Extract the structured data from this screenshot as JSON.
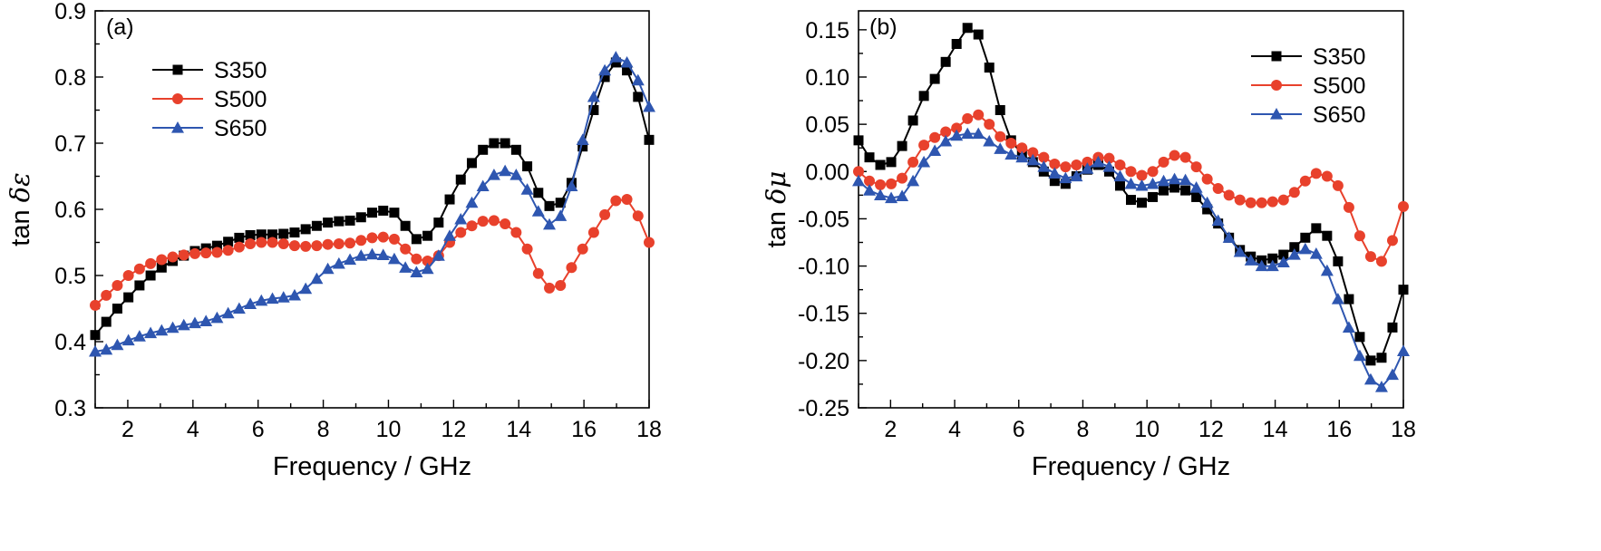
{
  "chart_data": [
    {
      "type": "line",
      "panel_label": "(a)",
      "xlabel": "Frequency / GHz",
      "ylabel_prefix": "tan ",
      "ylabel_symbol": "δε",
      "xlim": [
        1,
        18
      ],
      "ylim": [
        0.3,
        0.9
      ],
      "xticks": [
        2,
        4,
        6,
        8,
        10,
        12,
        14,
        16,
        18
      ],
      "xtick_labels": [
        "2",
        "4",
        "6",
        "8",
        "10",
        "12",
        "14",
        "16",
        "18"
      ],
      "yticks": [
        0.3,
        0.4,
        0.5,
        0.6,
        0.7,
        0.8,
        0.9
      ],
      "ytick_labels": [
        "0.3",
        "0.4",
        "0.5",
        "0.6",
        "0.7",
        "0.8",
        "0.9"
      ],
      "legend_position": "upper-left",
      "grid": false,
      "x": [
        1,
        1.34,
        1.68,
        2.02,
        2.36,
        2.7,
        3.04,
        3.38,
        3.72,
        4.06,
        4.4,
        4.74,
        5.08,
        5.42,
        5.76,
        6.1,
        6.44,
        6.78,
        7.12,
        7.46,
        7.8,
        8.14,
        8.48,
        8.82,
        9.16,
        9.5,
        9.84,
        10.18,
        10.52,
        10.86,
        11.2,
        11.54,
        11.88,
        12.22,
        12.56,
        12.9,
        13.24,
        13.58,
        13.92,
        14.26,
        14.6,
        14.94,
        15.28,
        15.62,
        15.96,
        16.3,
        16.64,
        16.98,
        17.32,
        17.66,
        18
      ],
      "series": [
        {
          "name": "S350",
          "color": "#000000",
          "marker": "square",
          "values": [
            0.41,
            0.43,
            0.45,
            0.467,
            0.485,
            0.5,
            0.512,
            0.522,
            0.53,
            0.537,
            0.541,
            0.545,
            0.551,
            0.557,
            0.561,
            0.562,
            0.562,
            0.563,
            0.565,
            0.57,
            0.575,
            0.58,
            0.582,
            0.583,
            0.588,
            0.595,
            0.598,
            0.595,
            0.575,
            0.555,
            0.56,
            0.58,
            0.615,
            0.645,
            0.67,
            0.69,
            0.7,
            0.7,
            0.69,
            0.665,
            0.625,
            0.605,
            0.61,
            0.64,
            0.695,
            0.75,
            0.8,
            0.822,
            0.81,
            0.77,
            0.705
          ]
        },
        {
          "name": "S500",
          "color": "#e8412c",
          "marker": "circle",
          "values": [
            0.455,
            0.47,
            0.485,
            0.5,
            0.51,
            0.518,
            0.524,
            0.528,
            0.531,
            0.533,
            0.534,
            0.535,
            0.538,
            0.543,
            0.548,
            0.55,
            0.55,
            0.548,
            0.545,
            0.544,
            0.545,
            0.547,
            0.548,
            0.549,
            0.553,
            0.557,
            0.558,
            0.555,
            0.54,
            0.525,
            0.522,
            0.53,
            0.55,
            0.565,
            0.575,
            0.582,
            0.583,
            0.578,
            0.565,
            0.54,
            0.503,
            0.481,
            0.485,
            0.512,
            0.54,
            0.565,
            0.592,
            0.613,
            0.615,
            0.59,
            0.55
          ]
        },
        {
          "name": "S650",
          "color": "#2e56b0",
          "marker": "triangle",
          "values": [
            0.385,
            0.388,
            0.395,
            0.402,
            0.408,
            0.413,
            0.417,
            0.421,
            0.425,
            0.428,
            0.431,
            0.436,
            0.443,
            0.45,
            0.457,
            0.462,
            0.465,
            0.467,
            0.47,
            0.48,
            0.495,
            0.51,
            0.518,
            0.524,
            0.53,
            0.532,
            0.531,
            0.525,
            0.512,
            0.505,
            0.51,
            0.53,
            0.56,
            0.585,
            0.61,
            0.635,
            0.652,
            0.658,
            0.652,
            0.63,
            0.597,
            0.577,
            0.59,
            0.635,
            0.705,
            0.77,
            0.81,
            0.83,
            0.822,
            0.795,
            0.755
          ]
        }
      ]
    },
    {
      "type": "line",
      "panel_label": "(b)",
      "xlabel": "Frequency / GHz",
      "ylabel_prefix": "tan ",
      "ylabel_symbol": "δμ",
      "xlim": [
        1,
        18
      ],
      "ylim": [
        -0.25,
        0.17
      ],
      "xticks": [
        2,
        4,
        6,
        8,
        10,
        12,
        14,
        16,
        18
      ],
      "xtick_labels": [
        "2",
        "4",
        "6",
        "8",
        "10",
        "12",
        "14",
        "16",
        "18"
      ],
      "yticks": [
        -0.25,
        -0.2,
        -0.15,
        -0.1,
        -0.05,
        0.0,
        0.05,
        0.1,
        0.15
      ],
      "ytick_labels": [
        "-0.25",
        "-0.20",
        "-0.15",
        "-0.10",
        "-0.05",
        "0.00",
        "0.05",
        "0.10",
        "0.15"
      ],
      "legend_position": "upper-right",
      "grid": false,
      "x": [
        1,
        1.34,
        1.68,
        2.02,
        2.36,
        2.7,
        3.04,
        3.38,
        3.72,
        4.06,
        4.4,
        4.74,
        5.08,
        5.42,
        5.76,
        6.1,
        6.44,
        6.78,
        7.12,
        7.46,
        7.8,
        8.14,
        8.48,
        8.82,
        9.16,
        9.5,
        9.84,
        10.18,
        10.52,
        10.86,
        11.2,
        11.54,
        11.88,
        12.22,
        12.56,
        12.9,
        13.24,
        13.58,
        13.92,
        14.26,
        14.6,
        14.94,
        15.28,
        15.62,
        15.96,
        16.3,
        16.64,
        16.98,
        17.32,
        17.66,
        18
      ],
      "series": [
        {
          "name": "S350",
          "color": "#000000",
          "marker": "square",
          "values": [
            0.033,
            0.015,
            0.007,
            0.01,
            0.027,
            0.054,
            0.08,
            0.098,
            0.116,
            0.135,
            0.152,
            0.145,
            0.11,
            0.065,
            0.033,
            0.018,
            0.01,
            0.0,
            -0.01,
            -0.013,
            -0.005,
            0.002,
            0.007,
            0.0,
            -0.015,
            -0.03,
            -0.033,
            -0.027,
            -0.02,
            -0.017,
            -0.02,
            -0.027,
            -0.04,
            -0.055,
            -0.07,
            -0.083,
            -0.09,
            -0.094,
            -0.092,
            -0.088,
            -0.08,
            -0.07,
            -0.06,
            -0.068,
            -0.095,
            -0.135,
            -0.175,
            -0.2,
            -0.197,
            -0.165,
            -0.125
          ]
        },
        {
          "name": "S500",
          "color": "#e8412c",
          "marker": "circle",
          "values": [
            0.0,
            -0.01,
            -0.014,
            -0.013,
            -0.007,
            0.01,
            0.028,
            0.036,
            0.042,
            0.046,
            0.056,
            0.06,
            0.05,
            0.037,
            0.03,
            0.025,
            0.02,
            0.015,
            0.008,
            0.005,
            0.007,
            0.01,
            0.015,
            0.014,
            0.007,
            0.0,
            -0.004,
            0.0,
            0.01,
            0.017,
            0.015,
            0.005,
            -0.008,
            -0.018,
            -0.025,
            -0.03,
            -0.033,
            -0.033,
            -0.032,
            -0.03,
            -0.022,
            -0.01,
            -0.002,
            -0.005,
            -0.015,
            -0.038,
            -0.068,
            -0.09,
            -0.095,
            -0.073,
            -0.037
          ]
        },
        {
          "name": "S650",
          "color": "#2e56b0",
          "marker": "triangle",
          "values": [
            -0.01,
            -0.02,
            -0.025,
            -0.028,
            -0.026,
            -0.01,
            0.01,
            0.022,
            0.032,
            0.038,
            0.04,
            0.04,
            0.032,
            0.024,
            0.018,
            0.015,
            0.012,
            0.005,
            -0.002,
            -0.007,
            -0.005,
            0.003,
            0.01,
            0.005,
            -0.005,
            -0.013,
            -0.015,
            -0.013,
            -0.01,
            -0.008,
            -0.009,
            -0.017,
            -0.033,
            -0.052,
            -0.07,
            -0.085,
            -0.094,
            -0.1,
            -0.1,
            -0.096,
            -0.088,
            -0.082,
            -0.087,
            -0.105,
            -0.135,
            -0.165,
            -0.195,
            -0.22,
            -0.228,
            -0.215,
            -0.19
          ]
        }
      ]
    }
  ]
}
